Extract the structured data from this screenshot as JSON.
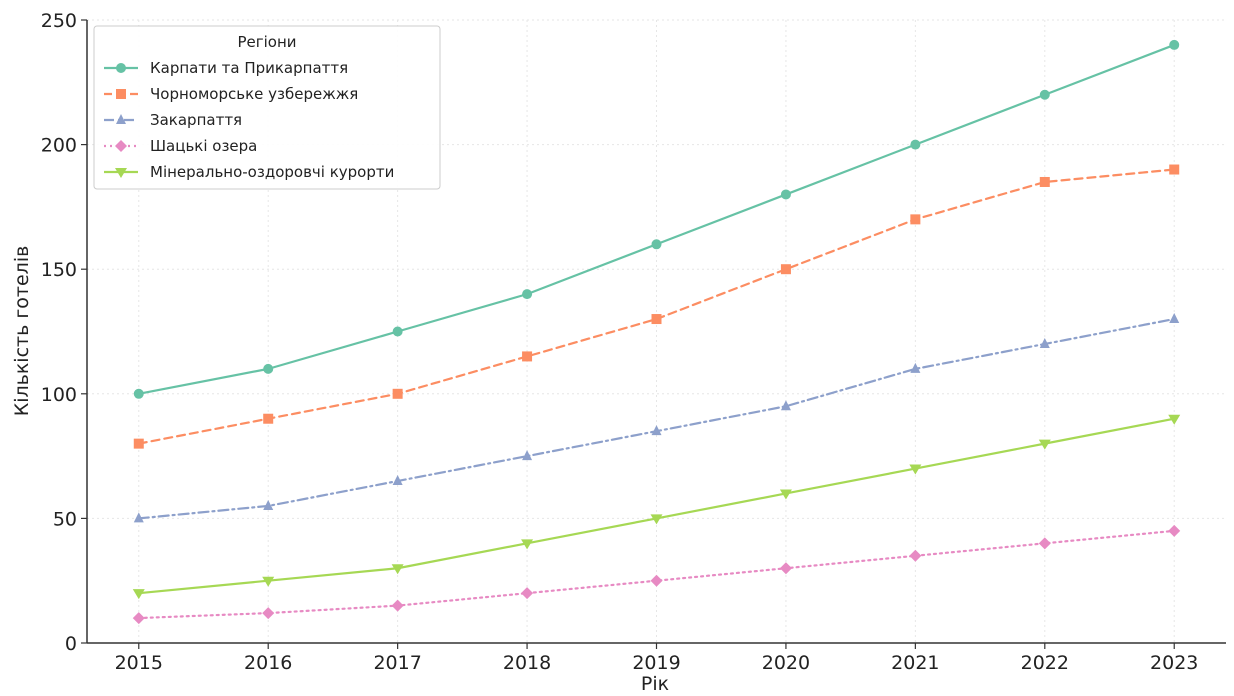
{
  "chart_data": {
    "type": "line",
    "xlabel": "Рік",
    "ylabel": "Кількість готелів",
    "x": [
      2015,
      2016,
      2017,
      2018,
      2019,
      2020,
      2021,
      2022,
      2023
    ],
    "xlim": [
      2014.6,
      2023.4
    ],
    "ylim": [
      0,
      250
    ],
    "yticks": [
      0,
      50,
      100,
      150,
      200,
      250
    ],
    "grid": true,
    "legend": {
      "title": "Регіони",
      "position": "top-left"
    },
    "series": [
      {
        "name": "Карпати та Прикарпаття",
        "values": [
          100,
          110,
          125,
          140,
          160,
          180,
          200,
          220,
          240
        ],
        "color": "#66c2a5",
        "marker": "circle",
        "dash": "solid"
      },
      {
        "name": "Чорноморське узбережжя",
        "values": [
          80,
          90,
          100,
          115,
          130,
          150,
          170,
          185,
          190
        ],
        "color": "#fc8d62",
        "marker": "square",
        "dash": "dashed"
      },
      {
        "name": "Закарпаття",
        "values": [
          50,
          55,
          65,
          75,
          85,
          95,
          110,
          120,
          130
        ],
        "color": "#8da0cb",
        "marker": "triangle-up",
        "dash": "dashdot"
      },
      {
        "name": "Шацькі озера",
        "values": [
          10,
          12,
          15,
          20,
          25,
          30,
          35,
          40,
          45
        ],
        "color": "#e78ac3",
        "marker": "diamond",
        "dash": "dotted"
      },
      {
        "name": "Мінерально-оздоровчі курорти",
        "values": [
          20,
          25,
          30,
          40,
          50,
          60,
          70,
          80,
          90
        ],
        "color": "#a6d854",
        "marker": "triangle-down",
        "dash": "solid"
      }
    ]
  }
}
